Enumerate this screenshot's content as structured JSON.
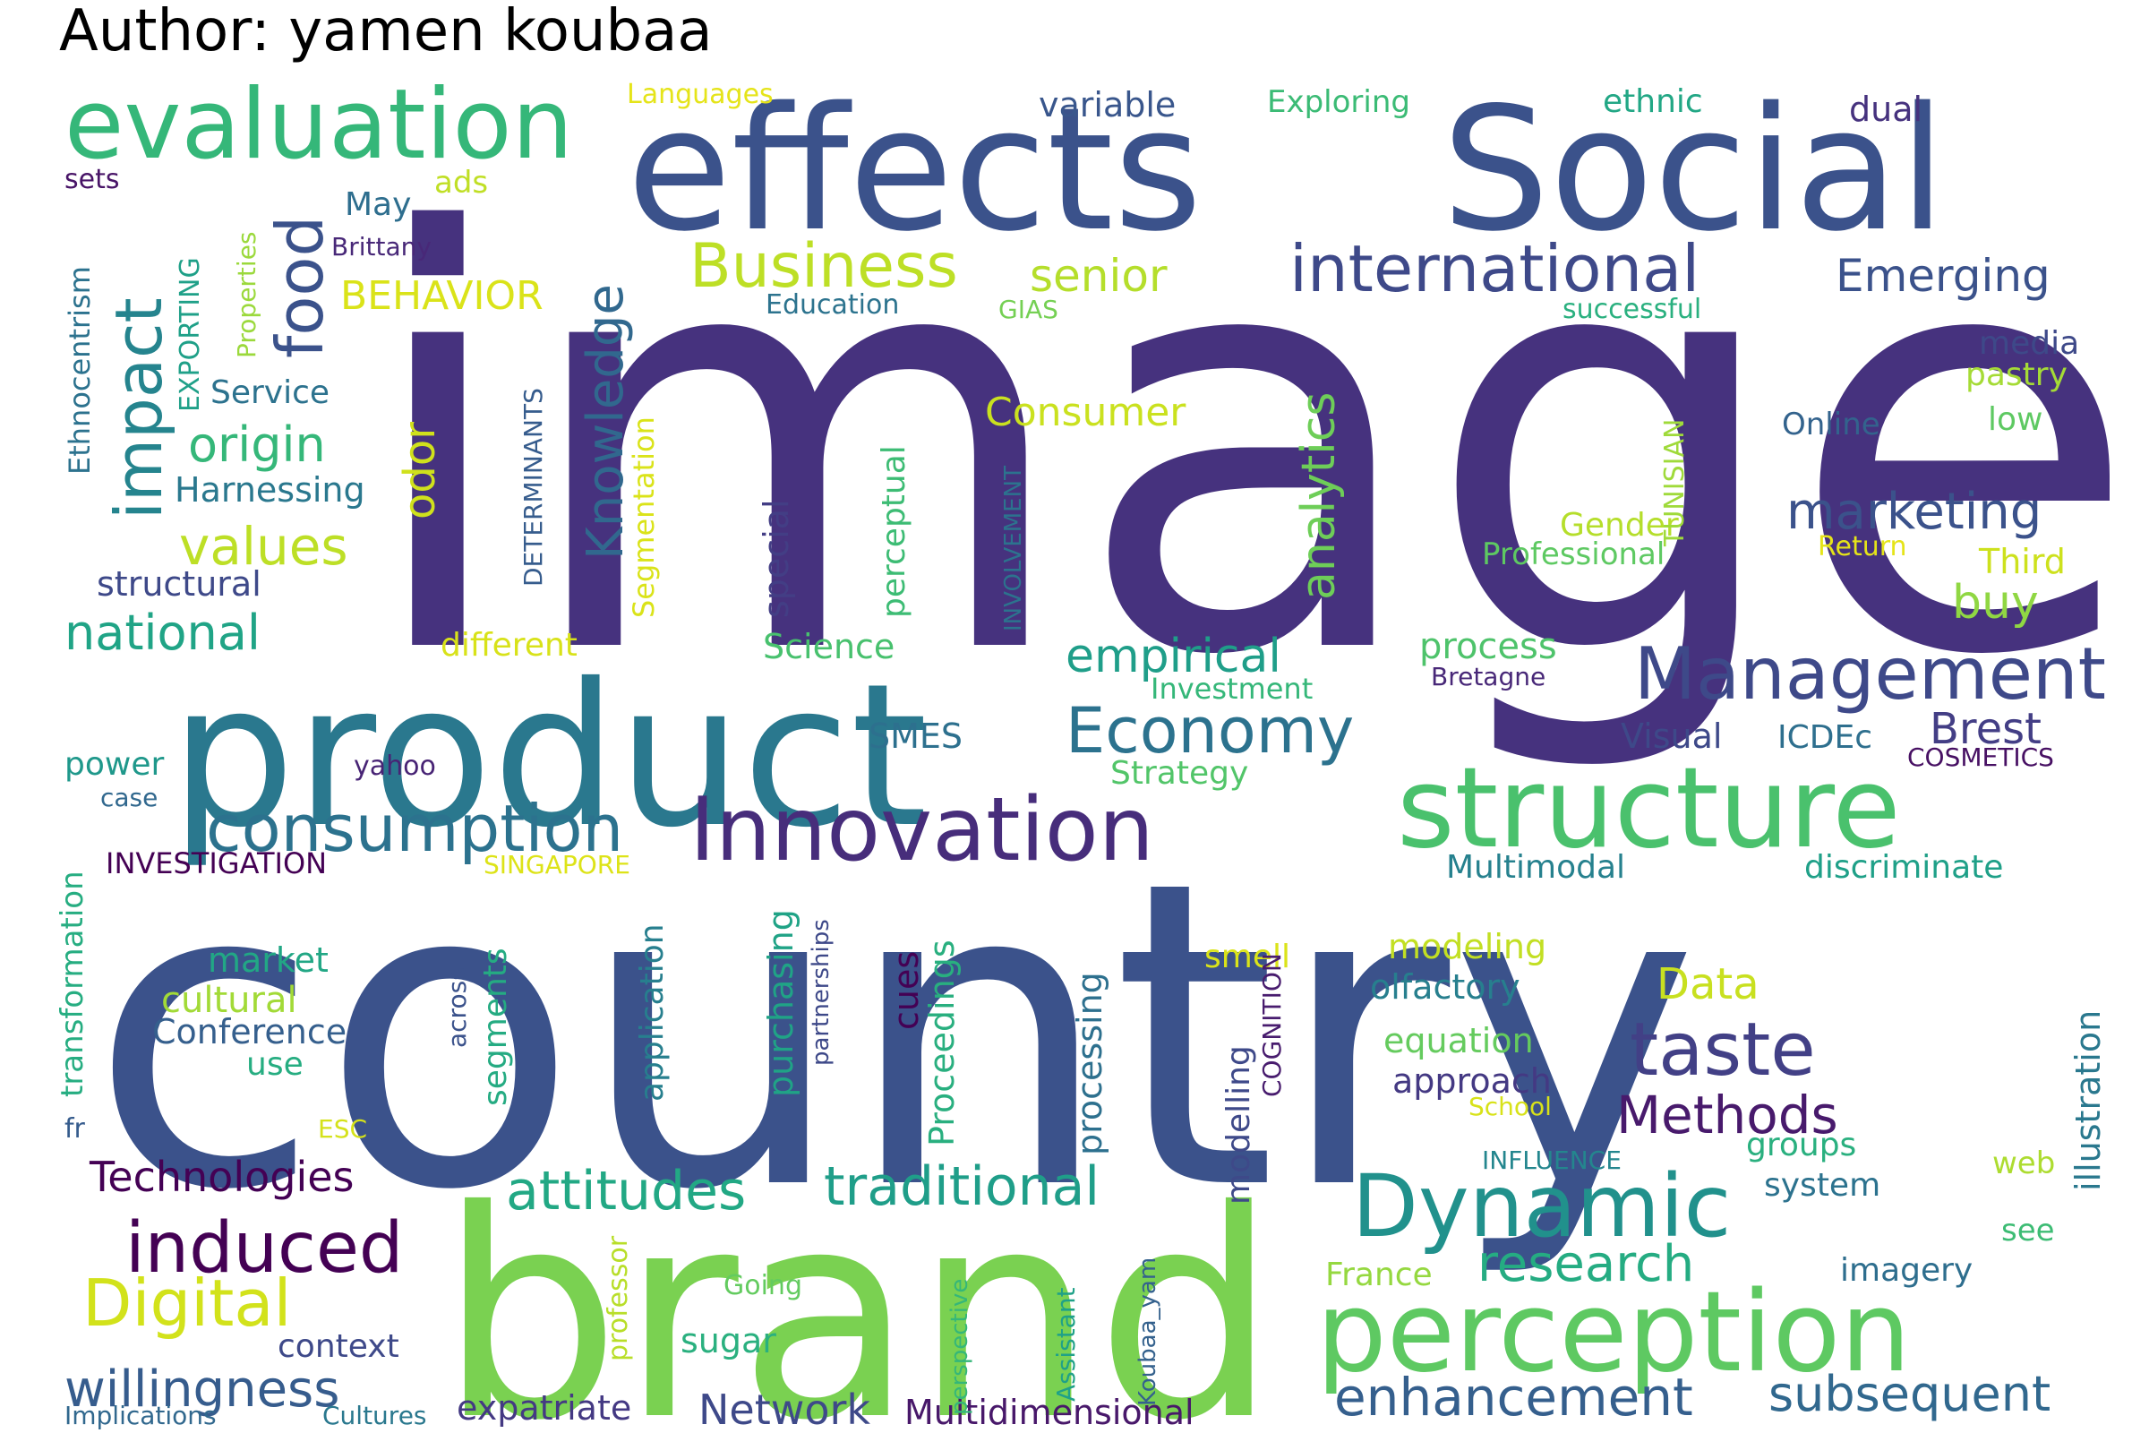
{
  "title": "Author: yamen koubaa",
  "words": [
    {
      "text": "image",
      "color": "#46327e"
    },
    {
      "text": "country",
      "color": "#3b528b"
    },
    {
      "text": "brand",
      "color": "#7ad151"
    },
    {
      "text": "product",
      "color": "#2a788e"
    },
    {
      "text": "effects",
      "color": "#3b528b"
    },
    {
      "text": "Social",
      "color": "#3b528b"
    },
    {
      "text": "evaluation",
      "color": "#35b779"
    },
    {
      "text": "structure",
      "color": "#4ac16d"
    },
    {
      "text": "perception",
      "color": "#5ec962"
    },
    {
      "text": "Innovation",
      "color": "#472d7b"
    },
    {
      "text": "Dynamic",
      "color": "#21918c"
    },
    {
      "text": "consumption",
      "color": "#2c728e"
    },
    {
      "text": "impact",
      "color": "#25848e"
    },
    {
      "text": "Management",
      "color": "#3e4989"
    },
    {
      "text": "induced",
      "color": "#440154"
    },
    {
      "text": "international",
      "color": "#3e4989"
    },
    {
      "text": "Business",
      "color": "#bddf26"
    },
    {
      "text": "Economy",
      "color": "#2c728e"
    },
    {
      "text": "Digital",
      "color": "#d2e21b"
    },
    {
      "text": "taste",
      "color": "#424086"
    },
    {
      "text": "food",
      "color": "#3b528b"
    },
    {
      "text": "traditional",
      "color": "#1f9e89"
    },
    {
      "text": "attitudes",
      "color": "#22a884"
    },
    {
      "text": "willingness",
      "color": "#365c8d"
    },
    {
      "text": "perception_",
      "color": "#5ec962"
    },
    {
      "text": "research",
      "color": "#25ac82"
    },
    {
      "text": "enhancement",
      "color": "#355f8d"
    },
    {
      "text": "subsequent",
      "color": "#31688e"
    },
    {
      "text": "Methods",
      "color": "#481a6c"
    },
    {
      "text": "marketing",
      "color": "#3b528b"
    },
    {
      "text": "Knowledge",
      "color": "#31688e"
    },
    {
      "text": "origin",
      "color": "#35b779"
    },
    {
      "text": "values",
      "color": "#bddf26"
    },
    {
      "text": "national",
      "color": "#20a486"
    },
    {
      "text": "empirical",
      "color": "#1f9e89"
    },
    {
      "text": "analytics",
      "color": "#6ece58"
    },
    {
      "text": "Technologies",
      "color": "#440154"
    },
    {
      "text": "Network",
      "color": "#3e4989"
    },
    {
      "text": "Emerging",
      "color": "#3b528b"
    },
    {
      "text": "senior",
      "color": "#b5de2b"
    },
    {
      "text": "Consumer",
      "color": "#cae11f"
    },
    {
      "text": "BEHAVIOR",
      "color": "#dae319"
    },
    {
      "text": "buy",
      "color": "#90d743"
    },
    {
      "text": "Brest",
      "color": "#433e85"
    },
    {
      "text": "Data",
      "color": "#c8e020"
    },
    {
      "text": "odor",
      "color": "#d0e11c"
    },
    {
      "text": "expatriate",
      "color": "#443983"
    },
    {
      "text": "Multidimensional",
      "color": "#48186a"
    },
    {
      "text": "variable",
      "color": "#39568c"
    },
    {
      "text": "Exploring",
      "color": "#3bbb75"
    },
    {
      "text": "ethnic",
      "color": "#22a785"
    },
    {
      "text": "dual",
      "color": "#46327e"
    },
    {
      "text": "Languages",
      "color": "#e5e419"
    },
    {
      "text": "ads",
      "color": "#c0df25"
    },
    {
      "text": "May",
      "color": "#2e6e8e"
    },
    {
      "text": "sets",
      "color": "#481467"
    },
    {
      "text": "Brittany",
      "color": "#482878"
    },
    {
      "text": "Education",
      "color": "#2c738e"
    },
    {
      "text": "GIAS",
      "color": "#75d054"
    },
    {
      "text": "successful",
      "color": "#2ab07f"
    },
    {
      "text": "media",
      "color": "#3e4989"
    },
    {
      "text": "pastry",
      "color": "#a5db36"
    },
    {
      "text": "low",
      "color": "#5ec962"
    },
    {
      "text": "Online",
      "color": "#33638d"
    },
    {
      "text": "Service",
      "color": "#2c728e"
    },
    {
      "text": "Harnessing",
      "color": "#2a788e"
    },
    {
      "text": "structural",
      "color": "#3e4989"
    },
    {
      "text": "different",
      "color": "#d8e219"
    },
    {
      "text": "Science",
      "color": "#48c16e"
    },
    {
      "text": "process",
      "color": "#4ec36b"
    },
    {
      "text": "Investment",
      "color": "#35b779"
    },
    {
      "text": "Bretagne",
      "color": "#482878"
    },
    {
      "text": "Gender",
      "color": "#b5de2b"
    },
    {
      "text": "Professional",
      "color": "#5ec962"
    },
    {
      "text": "Return",
      "color": "#e5e419"
    },
    {
      "text": "Third",
      "color": "#cde11d"
    },
    {
      "text": "SMES",
      "color": "#2d708e"
    },
    {
      "text": "Strategy",
      "color": "#52c569"
    },
    {
      "text": "Visual",
      "color": "#3e4989"
    },
    {
      "text": "ICDEc",
      "color": "#2e6f8e"
    },
    {
      "text": "COSMETICS",
      "color": "#471063"
    },
    {
      "text": "power",
      "color": "#1f988b"
    },
    {
      "text": "yahoo",
      "color": "#482475"
    },
    {
      "text": "case",
      "color": "#31688e"
    },
    {
      "text": "INVESTIGATION",
      "color": "#440154"
    },
    {
      "text": "SINGAPORE",
      "color": "#dde318"
    },
    {
      "text": "Multimodal",
      "color": "#26818e"
    },
    {
      "text": "discriminate",
      "color": "#1fa088"
    },
    {
      "text": "market",
      "color": "#22a785"
    },
    {
      "text": "cultural",
      "color": "#a2da37"
    },
    {
      "text": "Conference",
      "color": "#355f8d"
    },
    {
      "text": "use",
      "color": "#26ad81"
    },
    {
      "text": "smell",
      "color": "#dae319"
    },
    {
      "text": "modeling",
      "color": "#c2df23"
    },
    {
      "text": "olfactory",
      "color": "#277f8e"
    },
    {
      "text": "equation",
      "color": "#65cb5e"
    },
    {
      "text": "approach",
      "color": "#443983"
    },
    {
      "text": "School",
      "color": "#d8e219"
    },
    {
      "text": "groups",
      "color": "#2ab07f"
    },
    {
      "text": "web",
      "color": "#addc30"
    },
    {
      "text": "system",
      "color": "#2c728e"
    },
    {
      "text": "see",
      "color": "#3dbc74"
    },
    {
      "text": "imagery",
      "color": "#2e6e8e"
    },
    {
      "text": "INFLUENCE",
      "color": "#24868e"
    },
    {
      "text": "France",
      "color": "#95d840"
    },
    {
      "text": "Going",
      "color": "#63cb5f"
    },
    {
      "text": "sugar",
      "color": "#2ab07f"
    },
    {
      "text": "context",
      "color": "#3e4989"
    },
    {
      "text": "Implications",
      "color": "#31688e"
    },
    {
      "text": "Cultures",
      "color": "#2a788e"
    },
    {
      "text": "fr",
      "color": "#365c8d"
    },
    {
      "text": "ESC",
      "color": "#d5e21a"
    },
    {
      "text": "Ethnocentrism",
      "color": "#2c728e"
    },
    {
      "text": "EXPORTING",
      "color": "#1fa088"
    },
    {
      "text": "Properties",
      "color": "#9bd93c"
    },
    {
      "text": "DETERMINANTS",
      "color": "#365c8d"
    },
    {
      "text": "Segmentation",
      "color": "#dae319"
    },
    {
      "text": "special",
      "color": "#433e85"
    },
    {
      "text": "perceptual",
      "color": "#3dbc74"
    },
    {
      "text": "INVOLVEMENT",
      "color": "#2c738e"
    },
    {
      "text": "TUNISIAN",
      "color": "#9fda3a"
    },
    {
      "text": "transformation",
      "color": "#26ad81"
    },
    {
      "text": "across",
      "color": "#3b528b"
    },
    {
      "text": "segments",
      "color": "#25ab82"
    },
    {
      "text": "application",
      "color": "#277f8e"
    },
    {
      "text": "purchasing",
      "color": "#20a386"
    },
    {
      "text": "partnerships",
      "color": "#3e4989"
    },
    {
      "text": "cues",
      "color": "#440154"
    },
    {
      "text": "Proceedings",
      "color": "#29af7f"
    },
    {
      "text": "processing",
      "color": "#2d708e"
    },
    {
      "text": "COGNITION",
      "color": "#481c6e"
    },
    {
      "text": "modelling",
      "color": "#3e4989"
    },
    {
      "text": "illustration",
      "color": "#2a788e"
    },
    {
      "text": "professor",
      "color": "#b8de29"
    },
    {
      "text": "perspective",
      "color": "#35b779"
    },
    {
      "text": "Assistant",
      "color": "#1fa188"
    },
    {
      "text": "Koubaa_yam",
      "color": "#34618d"
    }
  ]
}
